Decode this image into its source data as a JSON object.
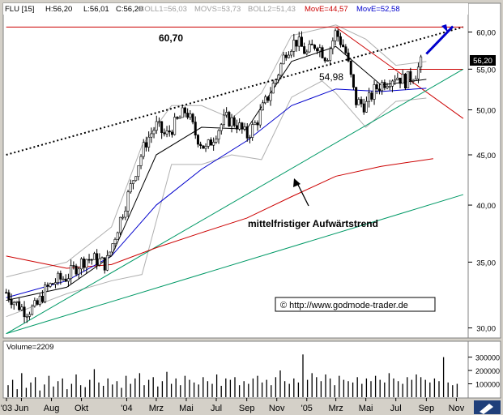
{
  "header": {
    "symbol": "FLU [15]",
    "high": "H:56,20",
    "low": "L:56,01",
    "close": "C:56,20",
    "boll1": "BOLL1=56,03",
    "movs": "MOVS=53,73",
    "boll2": "BOLL2=51,43",
    "move1": "MovE=44,57",
    "move2": "MovE=52,58"
  },
  "chart_data": [
    {
      "type": "candlestick",
      "title": "",
      "y_axis": {
        "ticks": [
          30,
          35,
          40,
          45,
          50,
          55,
          60
        ],
        "tick_labels": [
          "30,00",
          "35,00",
          "40,00",
          "45,00",
          "50,00",
          "55,00",
          "60,00"
        ],
        "scale": "log"
      },
      "x_axis": {
        "ticks": [
          "2003-05",
          "2003-06",
          "2003-08",
          "2003-10",
          "2004-01",
          "2004-03",
          "2004-05",
          "2004-07",
          "2004-09",
          "2004-11",
          "2005-01",
          "2005-03",
          "2005-05",
          "2005-07",
          "2005-09",
          "2005-11"
        ],
        "tick_labels": [
          "'03",
          "Jun",
          "Aug",
          "Okt",
          "'04",
          "Mrz",
          "Mai",
          "Jul",
          "Sep",
          "Nov",
          "'05",
          "Mrz",
          "Mai",
          "Jul",
          "Sep",
          "Nov"
        ]
      },
      "last_price_label": "56,20",
      "annotations": {
        "level_high": "60,70",
        "level_low": "54,98",
        "trend_text": "mittelfristiger Aufwärtstrend",
        "copyright": "© http://www.godmode-trader.de"
      },
      "price_path": [
        [
          "2003-05-01",
          32.6
        ],
        [
          "2003-05-20",
          31.8
        ],
        [
          "2003-06-10",
          31.2
        ],
        [
          "2003-07-01",
          31.5
        ],
        [
          "2003-07-20",
          32.8
        ],
        [
          "2003-08-10",
          33.5
        ],
        [
          "2003-09-01",
          33.8
        ],
        [
          "2003-09-20",
          34.6
        ],
        [
          "2003-10-10",
          35.3
        ],
        [
          "2003-11-01",
          35.2
        ],
        [
          "2003-11-20",
          34.8
        ],
        [
          "2003-12-10",
          37.5
        ],
        [
          "2004-01-01",
          40.5
        ],
        [
          "2004-01-20",
          43.5
        ],
        [
          "2004-02-10",
          46.5
        ],
        [
          "2004-03-01",
          48.2
        ],
        [
          "2004-03-20",
          47.0
        ],
        [
          "2004-04-10",
          48.5
        ],
        [
          "2004-05-01",
          50.0
        ],
        [
          "2004-05-20",
          47.2
        ],
        [
          "2004-06-10",
          45.5
        ],
        [
          "2004-07-01",
          47.5
        ],
        [
          "2004-07-20",
          49.0
        ],
        [
          "2004-08-10",
          48.5
        ],
        [
          "2004-09-01",
          47.0
        ],
        [
          "2004-09-20",
          48.5
        ],
        [
          "2004-10-10",
          51.0
        ],
        [
          "2004-11-01",
          54.0
        ],
        [
          "2004-11-20",
          57.5
        ],
        [
          "2004-12-10",
          58.8
        ],
        [
          "2005-01-01",
          57.0
        ],
        [
          "2005-01-20",
          58.5
        ],
        [
          "2005-02-10",
          56.5
        ],
        [
          "2005-03-01",
          60.0
        ],
        [
          "2005-03-20",
          57.5
        ],
        [
          "2005-04-10",
          51.0
        ],
        [
          "2005-05-01",
          50.5
        ],
        [
          "2005-05-20",
          52.5
        ],
        [
          "2005-06-10",
          53.5
        ],
        [
          "2005-07-01",
          54.2
        ],
        [
          "2005-07-20",
          53.5
        ],
        [
          "2005-08-10",
          54.5
        ],
        [
          "2005-08-25",
          56.2
        ]
      ],
      "series": [
        {
          "name": "MovE=44,57",
          "color": "#cc0000",
          "points": [
            [
              "2003-05-01",
              35.5
            ],
            [
              "2003-09-01",
              34.5
            ],
            [
              "2003-12-01",
              34.8
            ],
            [
              "2004-03-01",
              36.2
            ],
            [
              "2004-06-01",
              37.5
            ],
            [
              "2004-09-01",
              38.8
            ],
            [
              "2004-12-01",
              40.8
            ],
            [
              "2005-03-01",
              42.8
            ],
            [
              "2005-06-01",
              43.8
            ],
            [
              "2005-09-15",
              44.6
            ]
          ]
        },
        {
          "name": "MovE=52,58",
          "color": "#0000cc",
          "points": [
            [
              "2003-05-01",
              32.2
            ],
            [
              "2003-09-01",
              33.5
            ],
            [
              "2003-12-01",
              35.5
            ],
            [
              "2004-03-01",
              40.0
            ],
            [
              "2004-06-01",
              43.5
            ],
            [
              "2004-09-01",
              46.5
            ],
            [
              "2004-12-01",
              50.5
            ],
            [
              "2005-03-01",
              52.5
            ],
            [
              "2005-06-01",
              52.2
            ],
            [
              "2005-09-01",
              52.6
            ]
          ]
        },
        {
          "name": "MOVS=53,73",
          "color": "#000000",
          "points": [
            [
              "2003-05-01",
              32.0
            ],
            [
              "2003-09-01",
              33.0
            ],
            [
              "2003-12-01",
              35.5
            ],
            [
              "2004-03-01",
              45.0
            ],
            [
              "2004-06-01",
              48.0
            ],
            [
              "2004-09-01",
              47.8
            ],
            [
              "2004-12-01",
              56.0
            ],
            [
              "2005-03-01",
              58.0
            ],
            [
              "2005-06-01",
              53.0
            ],
            [
              "2005-09-01",
              53.7
            ]
          ]
        }
      ],
      "bollinger": {
        "upper": [
          [
            "2003-05-01",
            33.8
          ],
          [
            "2003-09-01",
            35.0
          ],
          [
            "2003-12-01",
            38.0
          ],
          [
            "2004-02-01",
            46.0
          ],
          [
            "2004-04-01",
            50.5
          ],
          [
            "2004-06-01",
            50.5
          ],
          [
            "2004-08-01",
            49.0
          ],
          [
            "2004-10-01",
            52.0
          ],
          [
            "2004-12-01",
            59.5
          ],
          [
            "2005-02-01",
            60.5
          ],
          [
            "2005-03-01",
            61.0
          ],
          [
            "2005-05-01",
            59.0
          ],
          [
            "2005-07-01",
            55.5
          ],
          [
            "2005-09-01",
            56.0
          ]
        ],
        "lower": [
          [
            "2003-05-01",
            30.8
          ],
          [
            "2003-09-01",
            32.5
          ],
          [
            "2003-12-01",
            33.5
          ],
          [
            "2004-02-01",
            34.0
          ],
          [
            "2004-04-01",
            44.0
          ],
          [
            "2004-06-01",
            44.0
          ],
          [
            "2004-08-01",
            45.0
          ],
          [
            "2004-10-01",
            44.5
          ],
          [
            "2004-12-01",
            51.5
          ],
          [
            "2005-02-01",
            53.5
          ],
          [
            "2005-03-01",
            52.0
          ],
          [
            "2005-05-01",
            48.0
          ],
          [
            "2005-07-01",
            51.0
          ],
          [
            "2005-09-01",
            51.4
          ]
        ]
      },
      "trendlines": [
        {
          "name": "upper-trend-dotted",
          "color": "#000000",
          "from": [
            "2003-05-01",
            45.0
          ],
          "to": [
            "2005-11-15",
            60.7
          ]
        },
        {
          "name": "horizontal-60-70",
          "color": "#cc0000",
          "from": [
            "2003-05-01",
            60.7
          ],
          "to": [
            "2005-11-15",
            60.7
          ]
        },
        {
          "name": "horizontal-54-98",
          "color": "#cc0000",
          "from": [
            "2005-06-15",
            54.98
          ],
          "to": [
            "2005-11-15",
            54.98
          ]
        },
        {
          "name": "downtrend-resistance",
          "color": "#cc0000",
          "from": [
            "2005-03-01",
            60.7
          ],
          "to": [
            "2005-11-15",
            49.0
          ]
        },
        {
          "name": "mid-term-uptrend",
          "color": "#009966",
          "from": [
            "2003-05-01",
            29.6
          ],
          "to": [
            "2005-11-15",
            55.0
          ]
        },
        {
          "name": "long-term-uptrend",
          "color": "#009966",
          "from": [
            "2003-05-01",
            29.6
          ],
          "to": [
            "2005-11-15",
            41.0
          ]
        },
        {
          "name": "target-arrow",
          "color": "#0000cc",
          "from": [
            "2005-09-01",
            57.0
          ],
          "to": [
            "2005-10-25",
            60.8
          ]
        }
      ]
    },
    {
      "type": "bar",
      "title": "Volume=2209",
      "y_axis": {
        "ticks": [
          100000,
          200000,
          300000
        ],
        "tick_labels": [
          "100000",
          "200000",
          "300000"
        ]
      },
      "values": [
        90000,
        130000,
        60000,
        180000,
        70000,
        110000,
        150000,
        50000,
        95000,
        160000,
        80000,
        120000,
        140000,
        60000,
        100000,
        170000,
        90000,
        75000,
        130000,
        210000,
        110000,
        85000,
        140000,
        95000,
        120000,
        70000,
        160000,
        100000,
        140000,
        180000,
        90000,
        130000,
        150000,
        80000,
        120000,
        190000,
        100000,
        140000,
        90000,
        160000,
        130000,
        110000,
        95000,
        150000,
        120000,
        100000,
        170000,
        85000,
        140000,
        130000,
        150000,
        90000,
        120000,
        100000,
        140000,
        160000,
        110000,
        130000,
        90000,
        150000,
        200000,
        120000,
        100000,
        140000,
        110000,
        320000,
        130000,
        180000,
        150000,
        120000,
        170000,
        140000,
        90000,
        160000,
        130000,
        120000,
        110000,
        150000,
        100000,
        140000,
        120000,
        160000,
        130000,
        110000,
        180000,
        140000,
        120000,
        100000,
        150000,
        130000,
        170000,
        150000,
        130000,
        110000,
        140000,
        120000,
        300000,
        110000,
        90000,
        100000
      ]
    }
  ]
}
